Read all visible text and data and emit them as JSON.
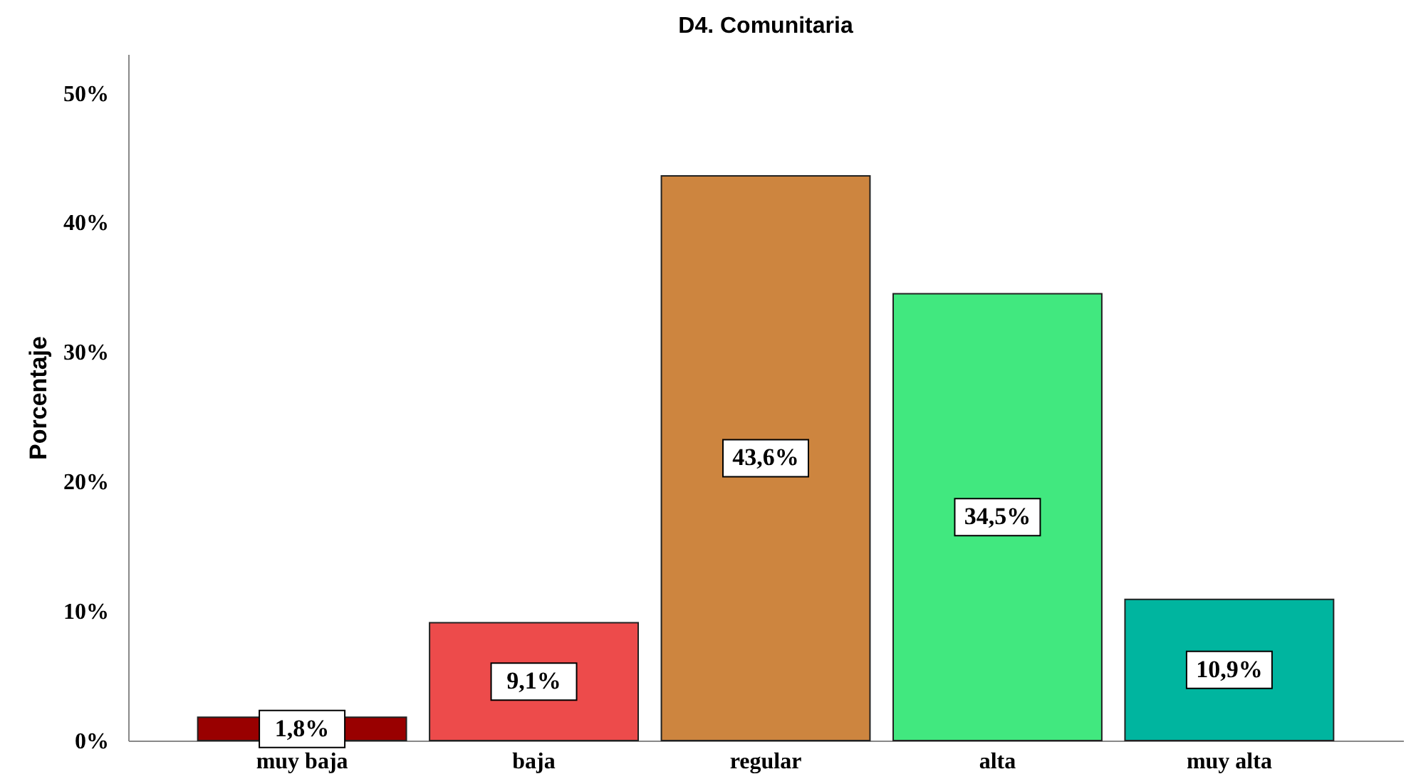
{
  "chart_data": {
    "type": "bar",
    "title": "D4. Comunitaria",
    "ylabel": "Porcentaje",
    "categories": [
      "muy baja",
      "baja",
      "regular",
      "alta",
      "muy alta"
    ],
    "values": [
      1.8,
      9.1,
      43.6,
      34.5,
      10.9
    ],
    "colors": [
      "#990000",
      "#ed4b4b",
      "#cd853f",
      "#41e87f",
      "#00b59f"
    ],
    "value_labels": [
      "1,8%",
      "9,1%",
      "43,6%",
      "34,5%",
      "10,9%"
    ],
    "ylim": [
      0,
      53
    ],
    "yticks": [
      {
        "value": 0,
        "label": "0%"
      },
      {
        "value": 10,
        "label": "10%"
      },
      {
        "value": 20,
        "label": "20%"
      },
      {
        "value": 30,
        "label": "30%"
      },
      {
        "value": 40,
        "label": "40%"
      },
      {
        "value": 50,
        "label": "50%"
      }
    ],
    "grid": false
  }
}
